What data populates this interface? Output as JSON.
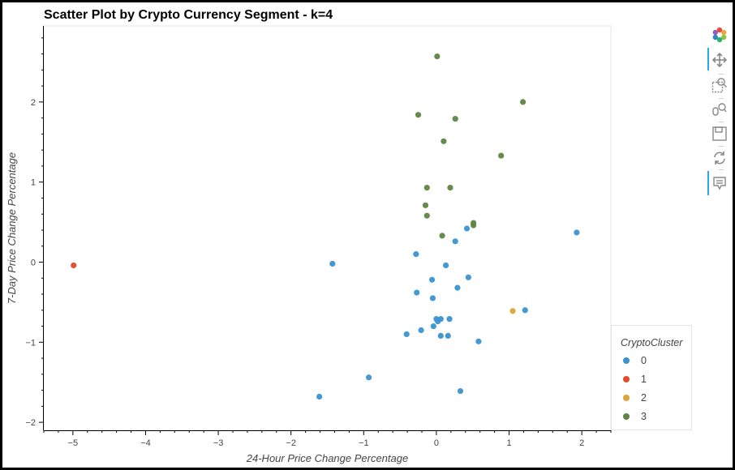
{
  "chart_data": {
    "type": "scatter",
    "title": "Scatter Plot by Crypto Currency Segment - k=4",
    "xlabel": "24-Hour Price Change Percentage",
    "ylabel": "7-Day Price Change Percentage",
    "xlim": [
      -5.4,
      2.4
    ],
    "ylim": [
      -2.1,
      2.95
    ],
    "xticks": [
      -5,
      -4,
      -3,
      -2,
      -1,
      0,
      1,
      2
    ],
    "yticks": [
      -2,
      -1,
      0,
      1,
      2
    ],
    "grid": false,
    "legend_title": "CryptoCluster",
    "legend_position": "right",
    "series": [
      {
        "name": "0",
        "color": "#3a93d0",
        "points": [
          [
            -1.43,
            -0.02
          ],
          [
            -0.28,
            0.1
          ],
          [
            0.42,
            0.42
          ],
          [
            0.26,
            0.26
          ],
          [
            0.13,
            -0.04
          ],
          [
            -0.06,
            -0.22
          ],
          [
            0.44,
            -0.19
          ],
          [
            0.29,
            -0.32
          ],
          [
            -0.27,
            -0.38
          ],
          [
            -0.05,
            -0.45
          ],
          [
            1.22,
            -0.6
          ],
          [
            0.06,
            -0.71
          ],
          [
            0.0,
            -0.71
          ],
          [
            0.02,
            -0.74
          ],
          [
            0.18,
            -0.71
          ],
          [
            -0.04,
            -0.8
          ],
          [
            -0.21,
            -0.85
          ],
          [
            -0.41,
            -0.9
          ],
          [
            0.06,
            -0.92
          ],
          [
            0.16,
            -0.92
          ],
          [
            0.58,
            -0.99
          ],
          [
            -0.93,
            -1.44
          ],
          [
            -1.61,
            -1.68
          ],
          [
            0.33,
            -1.61
          ],
          [
            1.93,
            0.37
          ]
        ]
      },
      {
        "name": "1",
        "color": "#e44a2c",
        "points": [
          [
            -4.99,
            -0.04
          ]
        ]
      },
      {
        "name": "2",
        "color": "#dea33b",
        "points": [
          [
            1.05,
            -0.61
          ]
        ]
      },
      {
        "name": "3",
        "color": "#5e8543",
        "points": [
          [
            0.01,
            2.57
          ],
          [
            1.19,
            2.0
          ],
          [
            -0.25,
            1.84
          ],
          [
            0.26,
            1.79
          ],
          [
            0.1,
            1.51
          ],
          [
            0.89,
            1.33
          ],
          [
            -0.13,
            0.93
          ],
          [
            0.19,
            0.93
          ],
          [
            -0.15,
            0.71
          ],
          [
            -0.13,
            0.58
          ],
          [
            0.51,
            0.49
          ],
          [
            0.51,
            0.46
          ],
          [
            0.08,
            0.33
          ]
        ]
      }
    ]
  },
  "toolbar": {
    "icons": [
      "bokeh-logo-icon",
      "pan-icon",
      "box-zoom-icon",
      "wheel-zoom-icon",
      "save-icon",
      "reset-icon",
      "hover-icon"
    ]
  }
}
